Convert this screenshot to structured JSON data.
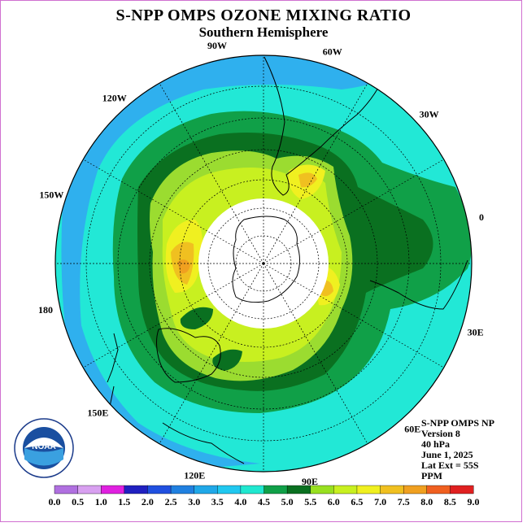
{
  "header": {
    "title": "S-NPP OMPS OZONE MIXING RATIO",
    "subtitle": "Southern Hemisphere"
  },
  "map": {
    "projection": "polar-stereographic-south",
    "longitude_labels": [
      "90W",
      "60W",
      "30W",
      "0",
      "30E",
      "60E",
      "90E",
      "120E",
      "150E",
      "180",
      "150W",
      "120W"
    ],
    "polar_cap_color": "#ffffff",
    "field_colors": {
      "outer": "#22e8d6",
      "ring_teal": "#2fb0ee",
      "mid": "#10a048",
      "high": "#9bdc30",
      "peak": "#f0a020"
    }
  },
  "info": {
    "lines": [
      "S-NPP OMPS NP",
      "Version 8",
      "40 hPa",
      "June 1, 2025",
      "Lat Ext = 55S",
      "PPM"
    ]
  },
  "logo": {
    "text": "NOAA"
  },
  "colorbar": {
    "ticks": [
      "0.0",
      "0.5",
      "1.0",
      "1.5",
      "2.0",
      "2.5",
      "3.0",
      "3.5",
      "4.0",
      "4.5",
      "5.0",
      "5.5",
      "6.0",
      "6.5",
      "7.0",
      "7.5",
      "8.0",
      "8.5",
      "9.0"
    ],
    "colors": [
      "#b070e0",
      "#d8a0f0",
      "#e020e0",
      "#2020c0",
      "#2050e0",
      "#2080e0",
      "#20a8e8",
      "#20c8f0",
      "#20e8d0",
      "#10a048",
      "#0a7020",
      "#98e020",
      "#c8f020",
      "#f0f020",
      "#f0c020",
      "#f0a020",
      "#f06020",
      "#e02020",
      "#a07040"
    ]
  }
}
